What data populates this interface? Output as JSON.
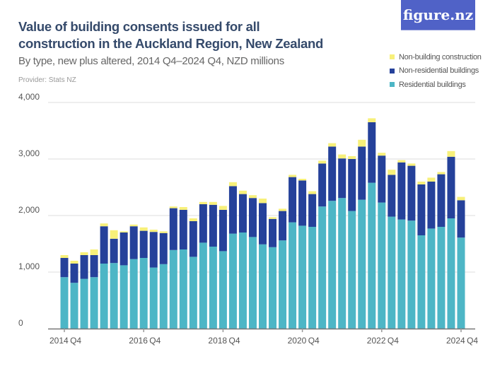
{
  "header": {
    "title": "Value of building consents issued for all construction in the Auckland Region, New Zealand",
    "subtitle": "By type, new plus altered, 2014 Q4–2024 Q4, NZD millions",
    "provider": "Provider: Stats NZ",
    "logo": "figure.nz"
  },
  "colors": {
    "residential": "#4db6c6",
    "non_residential": "#25419a",
    "non_building": "#f7f07a"
  },
  "chart_data": {
    "type": "bar",
    "stacked": true,
    "title": "Value of building consents issued for all construction in the Auckland Region, New Zealand",
    "subtitle": "By type, new plus altered, 2014 Q4–2024 Q4, NZD millions",
    "ylim": [
      0,
      4000
    ],
    "yticks": [
      0,
      1000,
      2000,
      3000,
      4000
    ],
    "ytick_labels": [
      "0",
      "1,000",
      "2,000",
      "3,000",
      "4,000"
    ],
    "xtick_labels": [
      "2014 Q4",
      "2016 Q4",
      "2018 Q4",
      "2020 Q4",
      "2022 Q4",
      "2024 Q4"
    ],
    "grid": true,
    "legend_position": "top-right",
    "categories": [
      "2014 Q4",
      "2015 Q1",
      "2015 Q2",
      "2015 Q3",
      "2015 Q4",
      "2016 Q1",
      "2016 Q2",
      "2016 Q3",
      "2016 Q4",
      "2017 Q1",
      "2017 Q2",
      "2017 Q3",
      "2017 Q4",
      "2018 Q1",
      "2018 Q2",
      "2018 Q3",
      "2018 Q4",
      "2019 Q1",
      "2019 Q2",
      "2019 Q3",
      "2019 Q4",
      "2020 Q1",
      "2020 Q2",
      "2020 Q3",
      "2020 Q4",
      "2021 Q1",
      "2021 Q2",
      "2021 Q3",
      "2021 Q4",
      "2022 Q1",
      "2022 Q2",
      "2022 Q3",
      "2022 Q4",
      "2023 Q1",
      "2023 Q2",
      "2023 Q3",
      "2023 Q4",
      "2024 Q1",
      "2024 Q2",
      "2024 Q3",
      "2024 Q4"
    ],
    "series": [
      {
        "name": "Residential buildings",
        "color": "#4db6c6",
        "values": [
          910,
          810,
          880,
          910,
          1150,
          1160,
          1120,
          1230,
          1250,
          1080,
          1140,
          1390,
          1400,
          1270,
          1520,
          1450,
          1370,
          1680,
          1700,
          1620,
          1490,
          1440,
          1560,
          1880,
          1820,
          1800,
          2160,
          2260,
          2310,
          2080,
          2280,
          2580,
          2230,
          1980,
          1930,
          1910,
          1650,
          1770,
          1800,
          1950,
          1610
        ]
      },
      {
        "name": "Non-residential buildings",
        "color": "#25419a",
        "values": [
          340,
          340,
          420,
          390,
          660,
          430,
          580,
          580,
          480,
          630,
          550,
          740,
          700,
          630,
          680,
          740,
          730,
          840,
          680,
          690,
          730,
          500,
          520,
          800,
          800,
          580,
          760,
          960,
          700,
          920,
          940,
          1070,
          830,
          740,
          1010,
          970,
          900,
          830,
          930,
          1090,
          660
        ]
      },
      {
        "name": "Non-building construction",
        "color": "#f7f07a",
        "values": [
          50,
          50,
          50,
          100,
          50,
          150,
          20,
          30,
          60,
          40,
          30,
          30,
          50,
          50,
          40,
          50,
          70,
          70,
          60,
          50,
          80,
          30,
          40,
          40,
          30,
          50,
          50,
          60,
          70,
          50,
          120,
          70,
          50,
          90,
          40,
          40,
          50,
          70,
          40,
          100,
          60
        ]
      }
    ]
  }
}
